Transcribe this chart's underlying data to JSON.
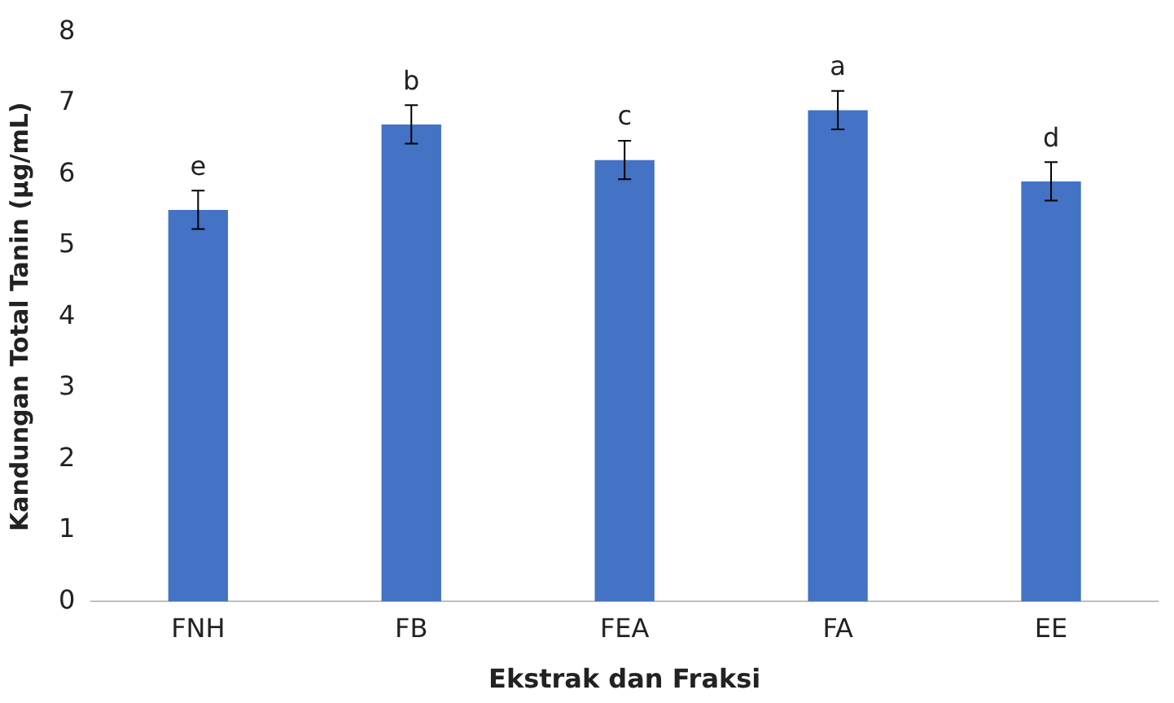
{
  "chart_data": {
    "type": "bar",
    "xlabel": "Ekstrak dan Fraksi",
    "ylabel": "Kandungan Total Tanin (µg/mL)",
    "categories": [
      "FNH",
      "FB",
      "FEA",
      "FA",
      "EE"
    ],
    "values": [
      5.5,
      6.7,
      6.2,
      6.9,
      5.9
    ],
    "errors": [
      0.27,
      0.27,
      0.27,
      0.27,
      0.27
    ],
    "color": "#4472c4",
    "ylim": [
      0,
      8
    ],
    "yticks": [
      0,
      1,
      2,
      3,
      4,
      5,
      6,
      7,
      8
    ],
    "grid": false,
    "legend": false,
    "annotations": [
      "e",
      "b",
      "c",
      "a",
      "d"
    ]
  }
}
